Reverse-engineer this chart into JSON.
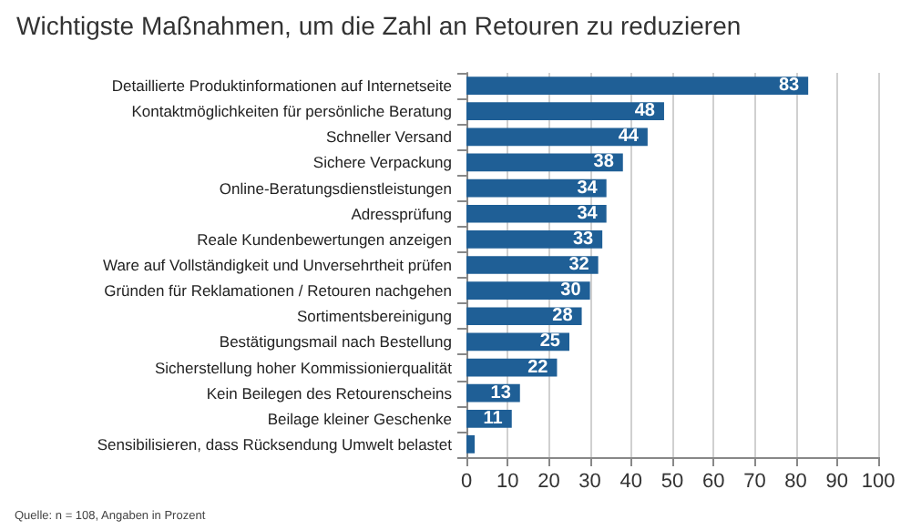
{
  "chart_data": {
    "type": "bar",
    "orientation": "horizontal",
    "title": "Wichtigste Maßnahmen, um die Zahl an Retouren zu reduzieren",
    "categories": [
      "Detaillierte Produktinformationen auf Internetseite",
      "Kontaktmöglichkeiten für persönliche Beratung",
      "Schneller Versand",
      "Sichere Verpackung",
      "Online-Beratungsdienstleistungen",
      "Adressprüfung",
      "Reale Kundenbewertungen anzeigen",
      "Ware auf Vollständigkeit und Unversehrtheit prüfen",
      "Gründen für Reklamationen / Retouren nachgehen",
      "Sortimentsbereinigung",
      "Bestätigungsmail nach Bestellung",
      "Sicherstellung hoher Kommissionierqualität",
      "Kein Beilegen des Retourenscheins",
      "Beilage kleiner Geschenke",
      "Sensibilisieren, dass Rücksendung Umwelt belastet"
    ],
    "values": [
      83,
      48,
      44,
      38,
      34,
      34,
      33,
      32,
      30,
      28,
      25,
      22,
      13,
      11,
      2
    ],
    "value_labels": [
      "83",
      "48",
      "44",
      "38",
      "34",
      "34",
      "33",
      "32",
      "30",
      "28",
      "25",
      "22",
      "13",
      "11",
      null
    ],
    "color": "#1f5f96",
    "xlim": [
      0,
      100
    ],
    "xticks": [
      0,
      10,
      20,
      30,
      40,
      50,
      60,
      70,
      80,
      90,
      100
    ],
    "grid": "x",
    "annotations": [
      "Quelle: n = 108, Angaben in Prozent"
    ]
  }
}
